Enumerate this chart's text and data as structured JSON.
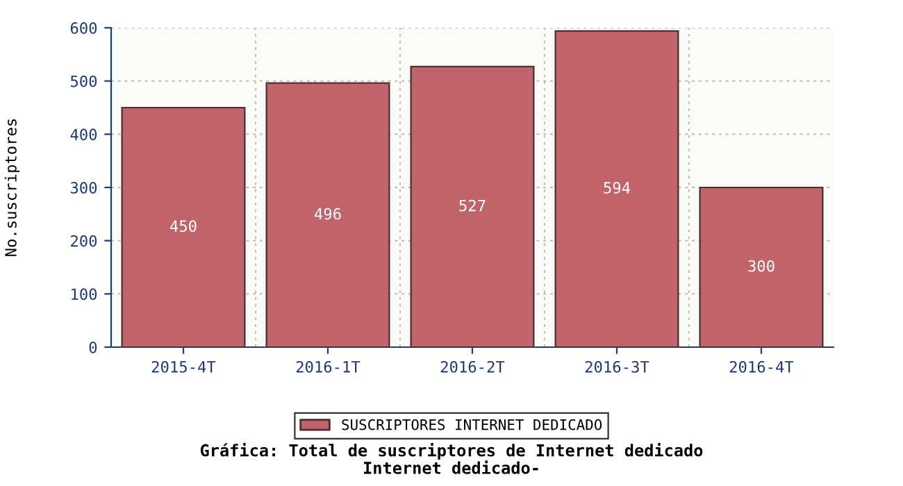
{
  "chart_data": {
    "type": "bar",
    "title": "Gráfica: Total de suscriptores de Internet dedicado",
    "subtitle": "Internet dedicado-",
    "ylabel": "No.suscriptores",
    "categories": [
      "2015-4T",
      "2016-1T",
      "2016-2T",
      "2016-3T",
      "2016-4T"
    ],
    "series": [
      {
        "name": "SUSCRIPTORES INTERNET DEDICADO",
        "color": "#c0636b",
        "values": [
          450,
          496,
          527,
          594,
          300
        ]
      }
    ],
    "ylim": [
      0,
      600
    ],
    "yticks": [
      0,
      100,
      200,
      300,
      400,
      500,
      600
    ],
    "grid": true,
    "legend": "bottom",
    "data_labels": true
  }
}
